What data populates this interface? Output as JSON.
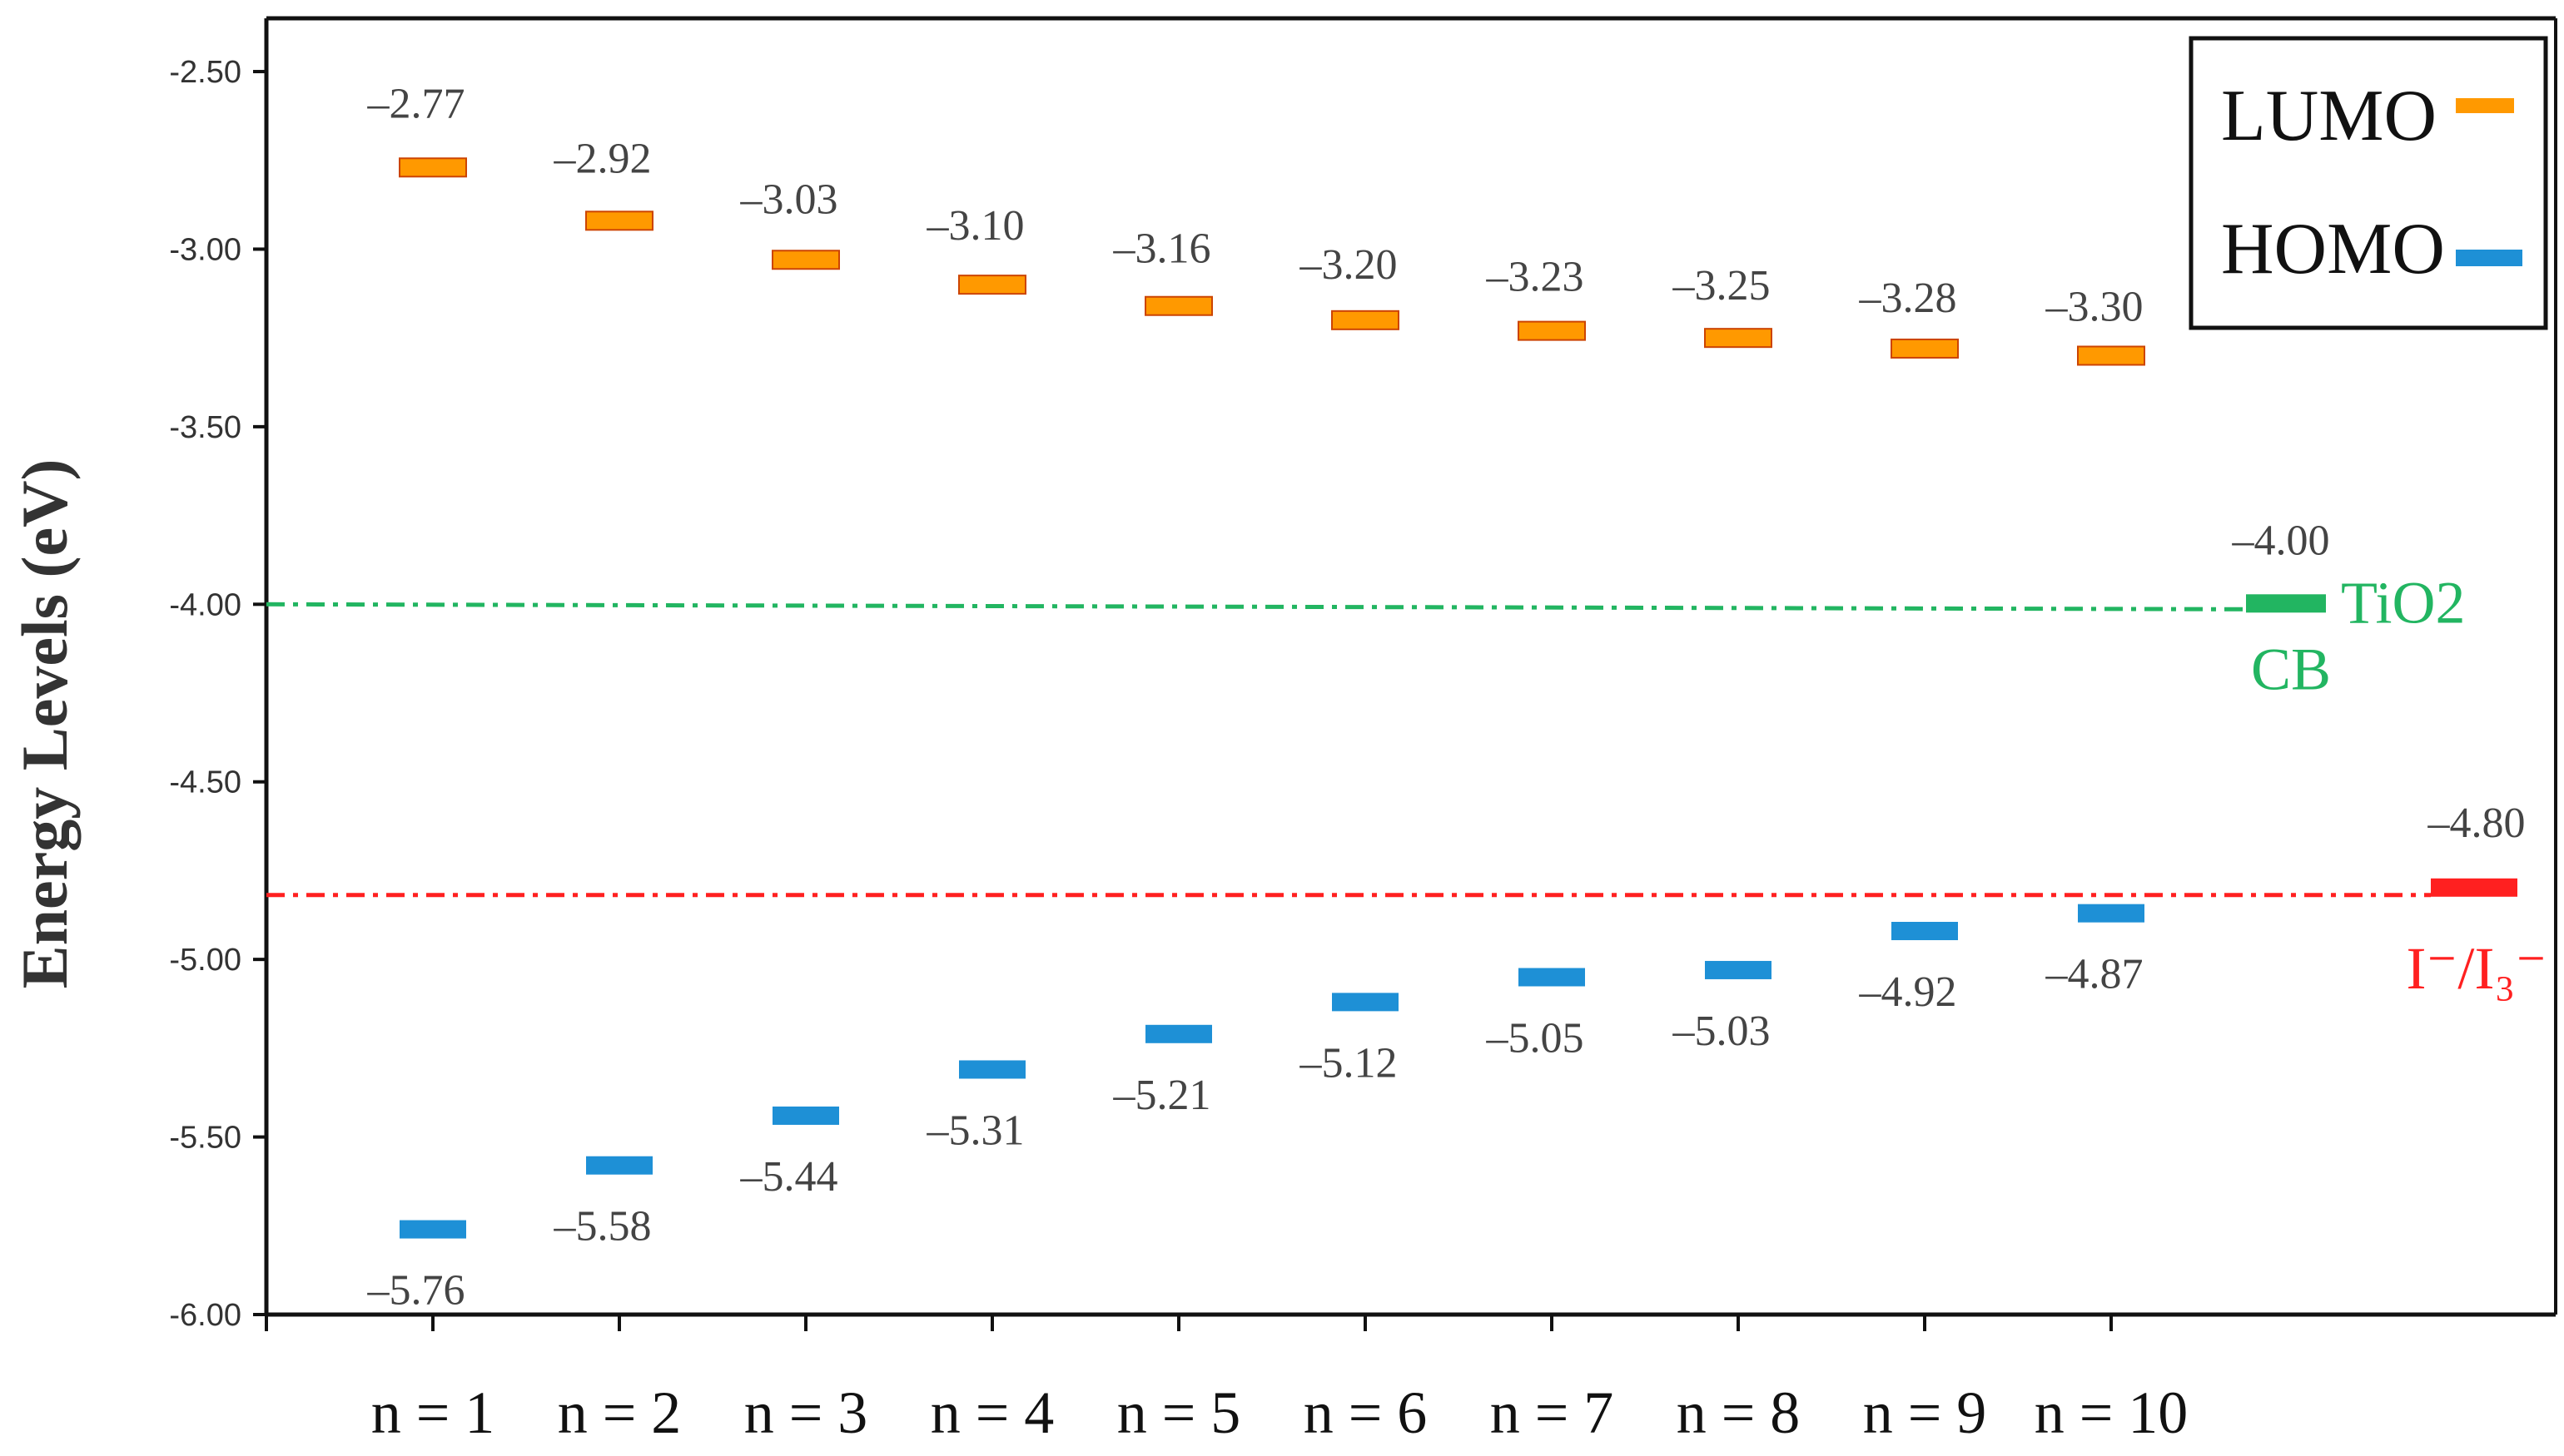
{
  "chart_data": {
    "type": "scatter",
    "ylabel": "Energy Levels (eV)",
    "xlabel": "",
    "ylim": [
      -6.0,
      -2.5
    ],
    "yticks": [
      -2.5,
      -3.0,
      -3.5,
      -4.0,
      -4.5,
      -5.0,
      -5.5,
      -6.0
    ],
    "ytick_labels": [
      "-2.50",
      "-3.00",
      "-3.50",
      "-4.00",
      "-4.50",
      "-5.00",
      "-5.50",
      "-6.00"
    ],
    "categories": [
      "n = 1",
      "n = 2",
      "n = 3",
      "n = 4",
      "n = 5",
      "n = 6",
      "n = 7",
      "n = 8",
      "n = 9",
      "n = 10"
    ],
    "series": [
      {
        "name": "LUMO",
        "color": "#ff9900",
        "values": [
          -2.77,
          -2.92,
          -3.03,
          -3.1,
          -3.16,
          -3.2,
          -3.23,
          -3.25,
          -3.28,
          -3.3
        ],
        "labels": [
          "–2.77",
          "–2.92",
          "–3.03",
          "–3.10",
          "–3.16",
          "–3.20",
          "–3.23",
          "–3.25",
          "–3.28",
          "–3.30"
        ]
      },
      {
        "name": "HOMO",
        "color": "#1e90d6",
        "values": [
          -5.76,
          -5.58,
          -5.44,
          -5.31,
          -5.21,
          -5.12,
          -5.05,
          -5.03,
          -4.92,
          -4.87
        ],
        "labels": [
          "–5.76",
          "–5.58",
          "–5.44",
          "–5.31",
          "–5.21",
          "–5.12",
          "–5.05",
          "–5.03",
          "–4.92",
          "–4.87"
        ]
      }
    ],
    "reference_lines": [
      {
        "value": -4.0,
        "value_label": "–4.00",
        "name": "TiO2",
        "name2": "CB",
        "color": "#22b561"
      },
      {
        "value": -4.8,
        "value_label": "–4.80",
        "name": "I⁻/I₃⁻",
        "color": "#ff2020"
      }
    ],
    "legend": {
      "placement": "top-right",
      "entries": [
        "LUMO",
        "HOMO"
      ]
    },
    "grid": false
  }
}
